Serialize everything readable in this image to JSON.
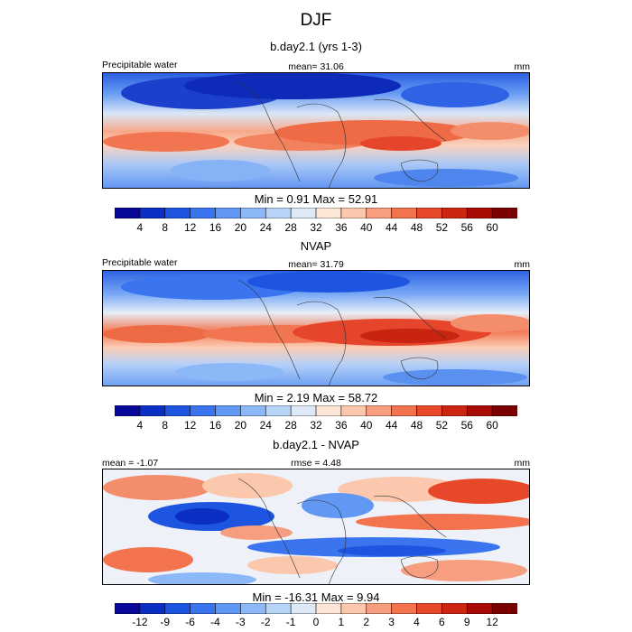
{
  "title": "DJF",
  "panels": [
    {
      "title": "b.day2.1 (yrs 1-3)",
      "left_label": "Precipitable water",
      "center_label": "mean=  31.06",
      "right_label": "mm",
      "minmax": "Min =   0.91 Max =  52.91",
      "colorbar": "positive"
    },
    {
      "title": "NVAP",
      "left_label": "Precipitable water",
      "center_label": "mean=  31.79",
      "right_label": "mm",
      "minmax": "Min =   2.19 Max =  58.72",
      "colorbar": "positive"
    },
    {
      "title": "b.day2.1 - NVAP",
      "left_label": "mean =  -1.07",
      "center_label": "rmse =   4.48",
      "right_label": "mm",
      "minmax": "Min = -16.31 Max =   9.94",
      "colorbar": "difference"
    }
  ],
  "colorbars": {
    "positive": {
      "ticks": [
        "4",
        "8",
        "12",
        "16",
        "20",
        "24",
        "28",
        "32",
        "36",
        "40",
        "44",
        "48",
        "52",
        "56",
        "60"
      ],
      "colors": [
        "#08089a",
        "#0b2fc2",
        "#1d55e0",
        "#3a74ef",
        "#6198f4",
        "#8cb8f7",
        "#b6d3f8",
        "#dde9f7",
        "#fde6d6",
        "#fbc7ad",
        "#f89e80",
        "#f3734f",
        "#e8482a",
        "#cc2511",
        "#a80a05",
        "#7a0000"
      ]
    },
    "difference": {
      "ticks": [
        "-12",
        "-9",
        "-6",
        "-4",
        "-3",
        "-2",
        "-1",
        "0",
        "1",
        "2",
        "3",
        "4",
        "6",
        "9",
        "12"
      ],
      "colors": [
        "#08089a",
        "#0b2fc2",
        "#1d55e0",
        "#3a74ef",
        "#6198f4",
        "#8cb8f7",
        "#b6d3f8",
        "#dde9f7",
        "#fde6d6",
        "#fbc7ad",
        "#f89e80",
        "#f3734f",
        "#e8482a",
        "#cc2511",
        "#a80a05",
        "#7a0000"
      ]
    }
  }
}
